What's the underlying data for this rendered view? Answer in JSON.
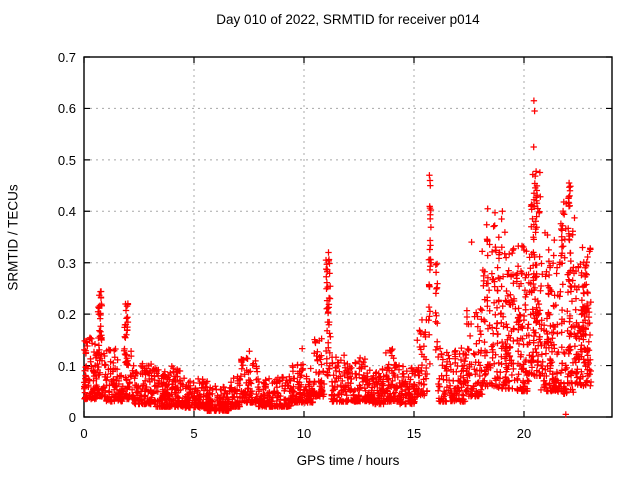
{
  "title": "Day 010 of 2022, SRMTID for receiver p014",
  "chart_data": {
    "type": "scatter",
    "title": "Day 010 of 2022, SRMTID for receiver p014",
    "xlabel": "GPS time / hours",
    "ylabel": "SRMTID / TECUs",
    "xlim": [
      0,
      24
    ],
    "ylim": [
      0,
      0.7
    ],
    "xticks": [
      0,
      5,
      10,
      15,
      20
    ],
    "yticks": [
      0,
      0.1,
      0.2,
      0.3,
      0.4,
      0.5,
      0.6,
      0.7
    ],
    "grid": true,
    "legend": "none",
    "marker": "plus",
    "marker_color": "#ff0000",
    "grid_color": "#a8a8a8",
    "border_color": "#000000",
    "seed": 20220110,
    "bands_comment": "dense scatter envelope: [x_start_hr, x_end_hr, n_points, y_min_TECU, y_max_TECU, skew_exponent]",
    "bands": [
      [
        0.0,
        0.55,
        80,
        0.035,
        0.155,
        1.8
      ],
      [
        0.55,
        0.95,
        40,
        0.04,
        0.13,
        2.0
      ],
      [
        0.95,
        1.75,
        95,
        0.03,
        0.135,
        2.0
      ],
      [
        1.75,
        2.25,
        45,
        0.035,
        0.13,
        2.0
      ],
      [
        2.25,
        3.1,
        95,
        0.025,
        0.105,
        2.0
      ],
      [
        3.1,
        4.6,
        180,
        0.02,
        0.1,
        2.2
      ],
      [
        4.6,
        5.6,
        110,
        0.018,
        0.075,
        2.2
      ],
      [
        5.6,
        6.6,
        110,
        0.012,
        0.06,
        2.0
      ],
      [
        6.6,
        7.1,
        50,
        0.02,
        0.08,
        2.0
      ],
      [
        7.1,
        7.9,
        75,
        0.028,
        0.115,
        1.9
      ],
      [
        7.9,
        9.4,
        150,
        0.02,
        0.08,
        2.0
      ],
      [
        9.4,
        10.4,
        105,
        0.028,
        0.105,
        2.0
      ],
      [
        10.4,
        10.95,
        55,
        0.04,
        0.16,
        1.8
      ],
      [
        11.25,
        12.1,
        85,
        0.03,
        0.12,
        2.0
      ],
      [
        12.1,
        13.0,
        90,
        0.03,
        0.115,
        2.0
      ],
      [
        13.0,
        13.7,
        75,
        0.025,
        0.095,
        2.0
      ],
      [
        13.7,
        14.3,
        68,
        0.03,
        0.13,
        2.0
      ],
      [
        14.3,
        15.1,
        85,
        0.025,
        0.1,
        2.0
      ],
      [
        15.1,
        15.6,
        48,
        0.04,
        0.19,
        1.8
      ],
      [
        16.1,
        17.4,
        125,
        0.03,
        0.135,
        2.0
      ],
      [
        17.4,
        18.1,
        75,
        0.04,
        0.21,
        1.8
      ],
      [
        18.1,
        18.75,
        80,
        0.06,
        0.4,
        1.7
      ],
      [
        18.75,
        19.5,
        110,
        0.055,
        0.37,
        1.8
      ],
      [
        19.5,
        20.3,
        110,
        0.05,
        0.34,
        1.8
      ],
      [
        20.3,
        20.75,
        80,
        0.08,
        0.48,
        1.7
      ],
      [
        20.75,
        21.4,
        100,
        0.05,
        0.36,
        1.8
      ],
      [
        21.4,
        22.3,
        120,
        0.045,
        0.42,
        1.8
      ],
      [
        22.3,
        23.05,
        100,
        0.06,
        0.33,
        1.6
      ]
    ],
    "spike_clusters_comment": "narrow vertical burst columns: {x_hr, x_jitter, n, y_min, y_max}",
    "spike_clusters": [
      {
        "x": 0.72,
        "jitter": 0.09,
        "n": 30,
        "lo": 0.09,
        "hi": 0.245
      },
      {
        "x": 1.92,
        "jitter": 0.08,
        "n": 28,
        "lo": 0.1,
        "hi": 0.25
      },
      {
        "x": 11.1,
        "jitter": 0.1,
        "n": 42,
        "lo": 0.08,
        "hi": 0.32
      },
      {
        "x": 15.72,
        "jitter": 0.06,
        "n": 26,
        "lo": 0.1,
        "hi": 0.475
      },
      {
        "x": 16.02,
        "jitter": 0.05,
        "n": 14,
        "lo": 0.12,
        "hi": 0.315
      },
      {
        "x": 20.5,
        "jitter": 0.09,
        "n": 32,
        "lo": 0.12,
        "hi": 0.48
      },
      {
        "x": 22.06,
        "jitter": 0.07,
        "n": 26,
        "lo": 0.12,
        "hi": 0.46
      },
      {
        "x": 22.75,
        "jitter": 0.16,
        "n": 42,
        "lo": 0.08,
        "hi": 0.3
      }
    ],
    "outlier_points_comment": "individually visible extreme points [hr, TECU]",
    "outlier_points": [
      [
        20.45,
        0.615
      ],
      [
        20.48,
        0.595
      ],
      [
        20.44,
        0.525
      ],
      [
        15.7,
        0.47
      ],
      [
        15.74,
        0.45
      ],
      [
        22.05,
        0.455
      ],
      [
        22.09,
        0.44
      ],
      [
        18.35,
        0.405
      ],
      [
        19.02,
        0.4
      ],
      [
        18.98,
        0.385
      ],
      [
        17.62,
        0.34
      ],
      [
        9.92,
        0.133
      ],
      [
        7.52,
        0.128
      ],
      [
        12.55,
        0.115
      ],
      [
        14.02,
        0.132
      ],
      [
        0.03,
        0.148
      ],
      [
        21.9,
        0.005
      ]
    ]
  }
}
